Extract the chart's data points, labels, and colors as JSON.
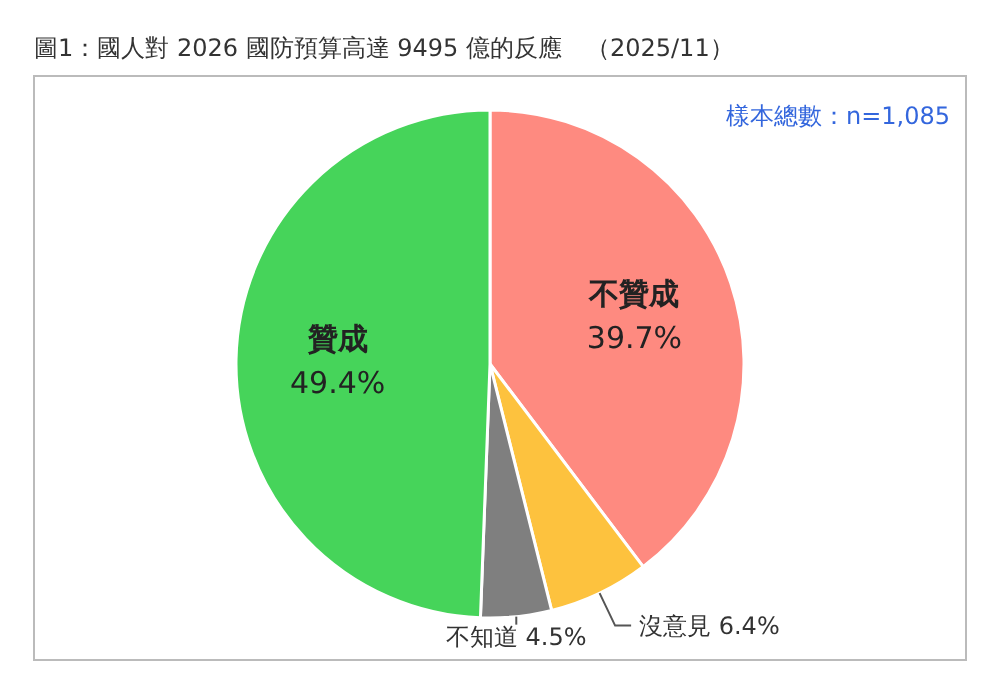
{
  "chart_data": {
    "type": "pie",
    "title": "圖1：國人對 2026 國防預算高達 9495 億的反應　（2025/11）",
    "categories": [
      "不贊成",
      "沒意見",
      "不知道",
      "贊成"
    ],
    "values": [
      39.7,
      6.4,
      4.5,
      49.4
    ],
    "value_labels": [
      "39.7%",
      "6.4%",
      "4.5%",
      "49.4%"
    ],
    "colors": [
      "#fe8a80",
      "#fdc23e",
      "#7f7f7f",
      "#46d45a"
    ],
    "annotations": [
      "樣本總數：n=1,085"
    ],
    "legend": false
  }
}
